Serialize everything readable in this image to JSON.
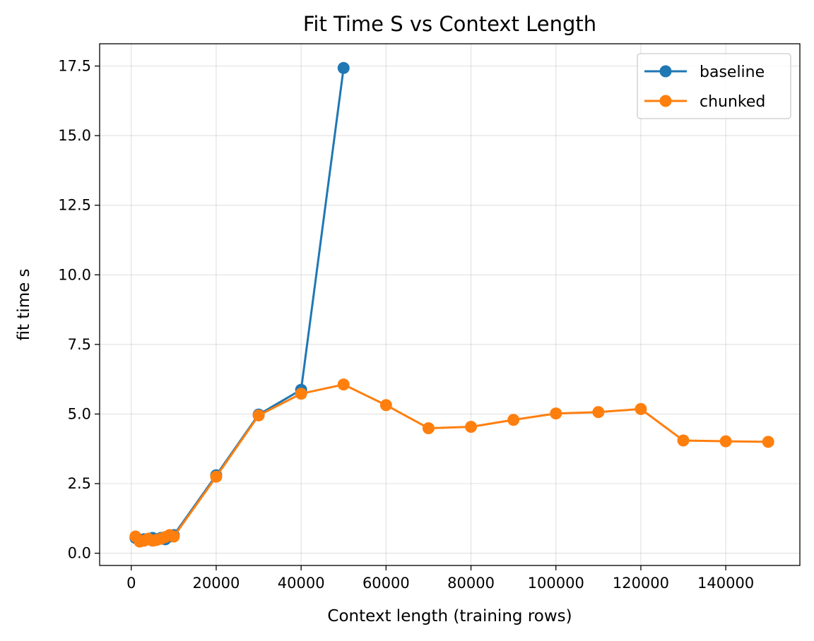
{
  "chart_data": {
    "type": "line",
    "title": "Fit Time S vs Context Length",
    "xlabel": "Context length (training rows)",
    "ylabel": "fit time s",
    "xlim": [
      -7450,
      157450
    ],
    "ylim": [
      -0.44,
      18.3
    ],
    "xticks": [
      0,
      20000,
      40000,
      60000,
      80000,
      100000,
      120000,
      140000
    ],
    "xtick_labels": [
      "0",
      "20000",
      "40000",
      "60000",
      "80000",
      "100000",
      "120000",
      "140000"
    ],
    "yticks": [
      0.0,
      2.5,
      5.0,
      7.5,
      10.0,
      12.5,
      15.0,
      17.5
    ],
    "ytick_labels": [
      "0.0",
      "2.5",
      "5.0",
      "7.5",
      "10.0",
      "12.5",
      "15.0",
      "17.5"
    ],
    "grid": true,
    "legend_position": "top-right",
    "series": [
      {
        "name": "baseline",
        "color": "#1f77b4",
        "x": [
          1000,
          2000,
          3000,
          4000,
          5000,
          6000,
          7000,
          8000,
          9000,
          10000,
          20000,
          30000,
          40000,
          50000
        ],
        "y": [
          0.55,
          0.45,
          0.5,
          0.5,
          0.55,
          0.5,
          0.55,
          0.5,
          0.6,
          0.65,
          2.8,
          4.98,
          5.87,
          17.43
        ]
      },
      {
        "name": "chunked",
        "color": "#ff7f0e",
        "x": [
          1000,
          2000,
          3000,
          4000,
          5000,
          6000,
          7000,
          8000,
          9000,
          10000,
          20000,
          30000,
          40000,
          50000,
          60000,
          70000,
          80000,
          90000,
          100000,
          110000,
          120000,
          130000,
          140000,
          150000
        ],
        "y": [
          0.6,
          0.42,
          0.45,
          0.52,
          0.45,
          0.48,
          0.52,
          0.58,
          0.65,
          0.6,
          2.75,
          4.95,
          5.73,
          6.06,
          5.32,
          4.49,
          4.54,
          4.79,
          5.02,
          5.07,
          5.18,
          4.05,
          4.02,
          4.0
        ]
      }
    ]
  }
}
